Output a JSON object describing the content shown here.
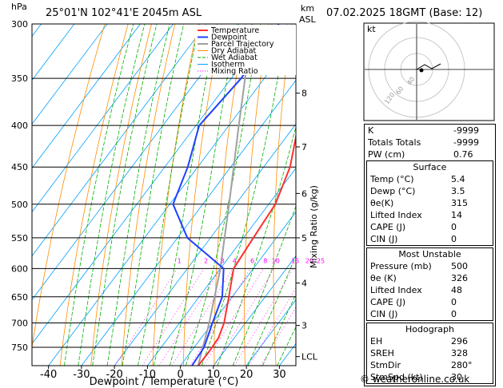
{
  "header": {
    "axis_unit": "hPa",
    "location": "25°01'N  102°41'E  2045m  ASL",
    "km_label": "km",
    "asl_label": "ASL",
    "datetime": "07.02.2025  18GMT  (Base: 12)"
  },
  "chart_data": {
    "type": "skew-t",
    "pressure_levels": [
      300,
      350,
      400,
      450,
      500,
      550,
      600,
      650,
      700,
      750
    ],
    "pmin": 300,
    "pmax": 790,
    "xlim": [
      -45,
      35
    ],
    "xticks": [
      -40,
      -30,
      -20,
      -10,
      0,
      10,
      20,
      30
    ],
    "xlabel": "Dewpoint / Temperature (°C)",
    "ylabel_right": "Mixing Ratio (g/kg)",
    "mixing_ratio_labels": [
      "1",
      "2",
      "3",
      "4",
      "6",
      "8",
      "10",
      "15",
      "20",
      "25"
    ],
    "mixing_ratio_values": [
      1,
      2,
      3,
      4,
      6,
      8,
      10,
      15,
      20,
      25
    ],
    "km_ticks": [
      {
        "label": "8",
        "p": 365
      },
      {
        "label": "7",
        "p": 425
      },
      {
        "label": "6",
        "p": 485
      },
      {
        "label": "5",
        "p": 550
      },
      {
        "label": "4",
        "p": 625
      },
      {
        "label": "3",
        "p": 705
      },
      {
        "label": "LCL",
        "p": 770
      }
    ],
    "legend": [
      "Temperature",
      "Dewpoint",
      "Parcel Trajectory",
      "Dry Adiabat",
      "Wet Adiabat",
      "Isotherm",
      "Mixing Ratio"
    ],
    "temperature": [
      {
        "p": 300,
        "t": -34
      },
      {
        "p": 350,
        "t": -26
      },
      {
        "p": 400,
        "t": -19
      },
      {
        "p": 450,
        "t": -12
      },
      {
        "p": 500,
        "t": -8
      },
      {
        "p": 550,
        "t": -7
      },
      {
        "p": 600,
        "t": -6
      },
      {
        "p": 650,
        "t": -1
      },
      {
        "p": 700,
        "t": 3.5
      },
      {
        "p": 730,
        "t": 5.2
      },
      {
        "p": 760,
        "t": 5.5
      },
      {
        "p": 790,
        "t": 5.4
      }
    ],
    "dewpoint": [
      {
        "p": 300,
        "t": -48
      },
      {
        "p": 350,
        "t": -47
      },
      {
        "p": 400,
        "t": -49
      },
      {
        "p": 450,
        "t": -43
      },
      {
        "p": 500,
        "t": -39
      },
      {
        "p": 550,
        "t": -27
      },
      {
        "p": 600,
        "t": -9
      },
      {
        "p": 650,
        "t": -3
      },
      {
        "p": 700,
        "t": 0
      },
      {
        "p": 750,
        "t": 3
      },
      {
        "p": 790,
        "t": 3.5
      }
    ],
    "parcel": [
      {
        "p": 790,
        "t": 5.4
      },
      {
        "p": 770,
        "t": 4
      },
      {
        "p": 700,
        "t": -1
      },
      {
        "p": 600,
        "t": -10
      },
      {
        "p": 500,
        "t": -22
      },
      {
        "p": 400,
        "t": -37
      },
      {
        "p": 300,
        "t": -56
      }
    ],
    "colors": {
      "temperature": "#ff3030",
      "dewpoint": "#2040ff",
      "parcel": "#a0a0a0",
      "dry": "#ff8c00",
      "wet": "#00b000",
      "isotherm": "#00a0ff",
      "mixing": "#ff00ff"
    }
  },
  "hodograph": {
    "label": "kt",
    "rings": [
      "40",
      "60",
      "120"
    ]
  },
  "indices": {
    "rows": [
      {
        "label": "K",
        "value": "-9999"
      },
      {
        "label": "Totals Totals",
        "value": "-9999"
      },
      {
        "label": "PW (cm)",
        "value": "0.76"
      }
    ]
  },
  "surface": {
    "title": "Surface",
    "rows": [
      {
        "label": "Temp (°C)",
        "value": "5.4"
      },
      {
        "label": "Dewp (°C)",
        "value": "3.5"
      },
      {
        "label": "θe(K)",
        "value": "315"
      },
      {
        "label": "Lifted Index",
        "value": "14"
      },
      {
        "label": "CAPE (J)",
        "value": "0"
      },
      {
        "label": "CIN (J)",
        "value": "0"
      }
    ]
  },
  "most_unstable": {
    "title": "Most Unstable",
    "rows": [
      {
        "label": "Pressure (mb)",
        "value": "500"
      },
      {
        "label": "θe (K)",
        "value": "326"
      },
      {
        "label": "Lifted Index",
        "value": "48"
      },
      {
        "label": "CAPE (J)",
        "value": "0"
      },
      {
        "label": "CIN (J)",
        "value": "0"
      }
    ]
  },
  "hodograph_table": {
    "title": "Hodograph",
    "rows": [
      {
        "label": "EH",
        "value": "296"
      },
      {
        "label": "SREH",
        "value": "328"
      },
      {
        "label": "StmDir",
        "value": "280°"
      },
      {
        "label": "StmSpd (kt)",
        "value": "30"
      }
    ]
  },
  "watermark": "© weatheronline.co.uk"
}
